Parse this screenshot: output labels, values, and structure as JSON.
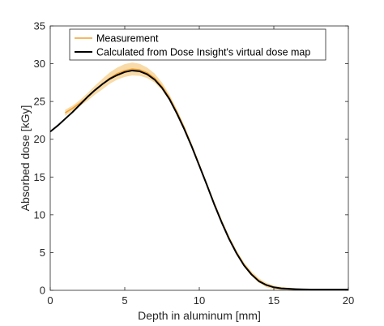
{
  "chart_data": {
    "type": "line",
    "title": "",
    "xlabel": "Depth in aluminum [mm]",
    "ylabel": "Absorbed dose [kGy]",
    "xlim": [
      0,
      20
    ],
    "ylim": [
      0,
      35
    ],
    "xticks": [
      0,
      5,
      10,
      15,
      20
    ],
    "yticks": [
      0,
      5,
      10,
      15,
      20,
      25,
      30,
      35
    ],
    "grid": false,
    "legend_position": "top-left",
    "series": [
      {
        "name": "Measurement",
        "color": "#f0a030",
        "band_color": "#f8dba8",
        "x": [
          1.0,
          1.5,
          2.0,
          2.5,
          3.0,
          3.5,
          4.0,
          4.5,
          5.0,
          5.5,
          6.0,
          6.5,
          7.0,
          7.5,
          8.0,
          8.5,
          9.0,
          9.5,
          10.0,
          10.5,
          11.0,
          11.5,
          12.0,
          12.5,
          13.0,
          13.5,
          14.0,
          14.5,
          15.0,
          15.5,
          16.0,
          16.5,
          17.0,
          17.5,
          18.0,
          18.5,
          19.0,
          19.5,
          20.0
        ],
        "y": [
          23.5,
          24.1,
          24.8,
          25.6,
          26.5,
          27.3,
          28.1,
          28.7,
          29.1,
          29.3,
          29.2,
          28.8,
          28.1,
          27.0,
          25.5,
          23.6,
          21.5,
          19.1,
          16.6,
          14.0,
          11.5,
          9.1,
          6.9,
          5.0,
          3.4,
          2.2,
          1.3,
          0.7,
          0.4,
          0.25,
          0.2,
          0.15,
          0.12,
          0.1,
          0.1,
          0.1,
          0.1,
          0.1,
          0.1
        ],
        "band_halfwidth": [
          0.4,
          0.35,
          0.4,
          0.5,
          0.6,
          0.7,
          0.75,
          0.8,
          0.85,
          0.85,
          0.8,
          0.7,
          0.6,
          0.5,
          0.4,
          0.35,
          0.3,
          0.3,
          0.3,
          0.3,
          0.3,
          0.3,
          0.3,
          0.3,
          0.3,
          0.3,
          0.3,
          0.3,
          0.25,
          0.2,
          0.15,
          0.1,
          0.08,
          0.05,
          0.05,
          0.05,
          0.05,
          0.05,
          0.05
        ]
      },
      {
        "name": "Calculated from Dose Insight's virtual dose map",
        "color": "#000000",
        "x": [
          0.0,
          0.5,
          1.0,
          1.5,
          2.0,
          2.5,
          3.0,
          3.5,
          4.0,
          4.5,
          5.0,
          5.5,
          6.0,
          6.5,
          7.0,
          7.5,
          8.0,
          8.5,
          9.0,
          9.5,
          10.0,
          10.5,
          11.0,
          11.5,
          12.0,
          12.5,
          13.0,
          13.5,
          14.0,
          14.5,
          15.0,
          15.5,
          16.0,
          16.5,
          17.0,
          17.5,
          18.0,
          18.5,
          19.0,
          19.5,
          20.0
        ],
        "y": [
          21.0,
          21.8,
          22.7,
          23.6,
          24.6,
          25.6,
          26.5,
          27.3,
          28.0,
          28.5,
          28.9,
          29.1,
          29.0,
          28.6,
          27.9,
          26.8,
          25.3,
          23.4,
          21.3,
          19.0,
          16.5,
          14.0,
          11.4,
          9.0,
          6.8,
          4.9,
          3.3,
          2.1,
          1.2,
          0.7,
          0.4,
          0.25,
          0.2,
          0.15,
          0.12,
          0.1,
          0.1,
          0.1,
          0.1,
          0.1,
          0.1
        ]
      }
    ]
  }
}
